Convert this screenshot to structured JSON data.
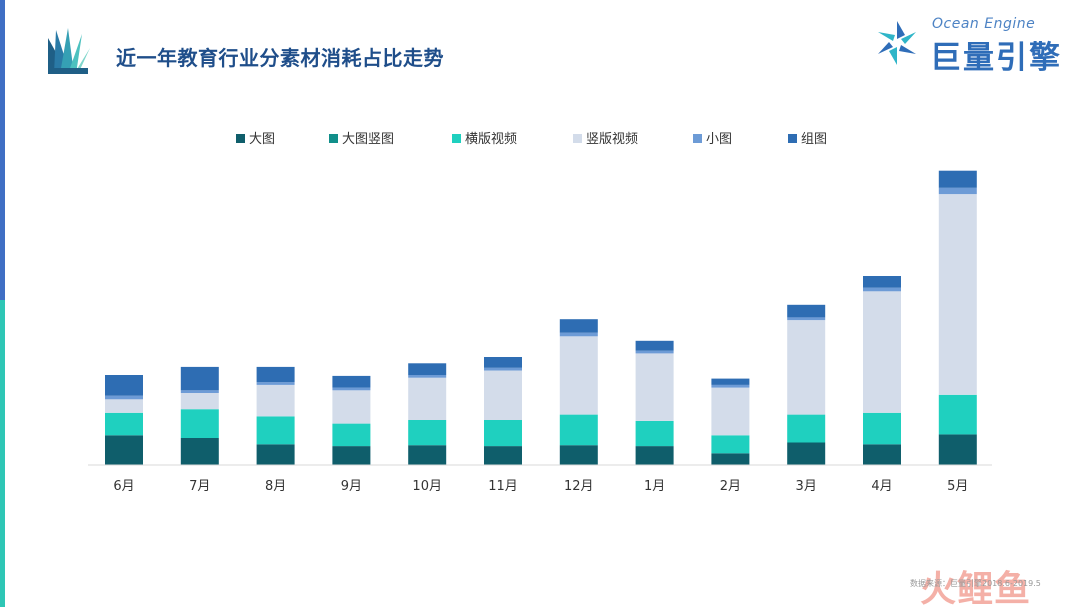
{
  "page": {
    "title": "近一年教育行业分素材消耗占比走势",
    "brand_en": "Ocean Engine",
    "brand_cn": "巨量引擎",
    "source": "数据来源：巨量引擎2018.6-2019.5",
    "watermark": "火鲤鱼"
  },
  "colors": {
    "accent_top": "#3f6fc4",
    "accent_bottom": "#2ec6b5",
    "title": "#1f4e8a"
  },
  "chart_data": {
    "type": "bar",
    "stacked": true,
    "categories": [
      "6月",
      "7月",
      "8月",
      "9月",
      "10月",
      "11月",
      "12月",
      "1月",
      "2月",
      "3月",
      "4月",
      "5月"
    ],
    "series": [
      {
        "name": "大图",
        "color": "#0f5e6b",
        "values": [
          33,
          30,
          23,
          21,
          22,
          21,
          22,
          21,
          13,
          25,
          23,
          34
        ]
      },
      {
        "name": "大图竖图",
        "color": "#118f8a",
        "values": [
          0,
          0,
          0,
          0,
          0,
          0,
          0,
          0,
          0,
          0,
          0,
          0
        ]
      },
      {
        "name": "横版视频",
        "color": "#1fd0bf",
        "values": [
          25,
          32,
          31,
          25,
          28,
          29,
          34,
          28,
          20,
          31,
          35,
          44
        ]
      },
      {
        "name": "竖版视频",
        "color": "#d3dcea",
        "values": [
          15,
          18,
          35,
          37,
          47,
          55,
          87,
          75,
          53,
          105,
          135,
          223
        ]
      },
      {
        "name": "小图",
        "color": "#6d9bd6",
        "values": [
          4,
          3,
          3,
          3,
          3,
          3,
          4,
          3,
          3,
          3,
          4,
          7
        ]
      },
      {
        "name": "组图",
        "color": "#2e6db3",
        "values": [
          23,
          26,
          17,
          13,
          13,
          12,
          15,
          11,
          7,
          14,
          13,
          19
        ]
      }
    ],
    "legend_position": "top",
    "grid": false
  }
}
